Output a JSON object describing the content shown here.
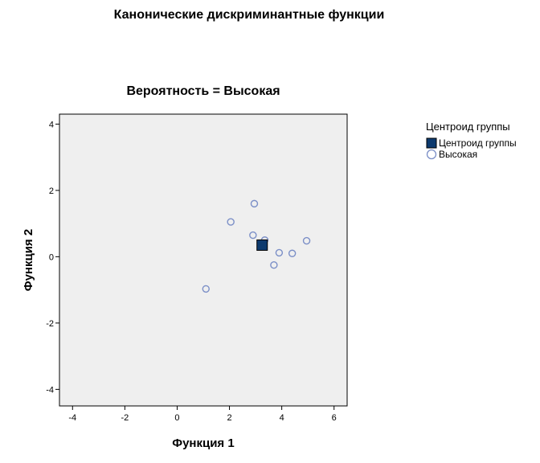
{
  "chart_data": {
    "type": "scatter",
    "title": "Канонические дискриминантные функции",
    "subtitle": "Вероятность = Высокая",
    "xlabel": "Функция 1",
    "ylabel": "Функция 2",
    "xlim": [
      -4.5,
      6.5
    ],
    "ylim": [
      -4.5,
      4.3
    ],
    "xticks": [
      -4,
      -2,
      0,
      2,
      4,
      6
    ],
    "yticks": [
      -4,
      -2,
      0,
      2,
      4
    ],
    "grid": false,
    "legend": {
      "title": "Центроид группы",
      "placement": "right",
      "entries": [
        "Центроид группы",
        "Высокая"
      ]
    },
    "series": [
      {
        "name": "Высокая",
        "marker": "circle",
        "color": "#7b8fc7",
        "points": [
          [
            2.05,
            1.05
          ],
          [
            2.95,
            1.6
          ],
          [
            2.9,
            0.65
          ],
          [
            3.35,
            0.5
          ],
          [
            3.9,
            0.12
          ],
          [
            4.4,
            0.1
          ],
          [
            4.95,
            0.48
          ],
          [
            3.7,
            -0.25
          ],
          [
            1.1,
            -0.97
          ]
        ]
      },
      {
        "name": "Центроид группы",
        "marker": "square",
        "color": "#0d3a6e",
        "points": [
          [
            3.25,
            0.35
          ]
        ]
      }
    ],
    "plot_background": "#efefef"
  }
}
